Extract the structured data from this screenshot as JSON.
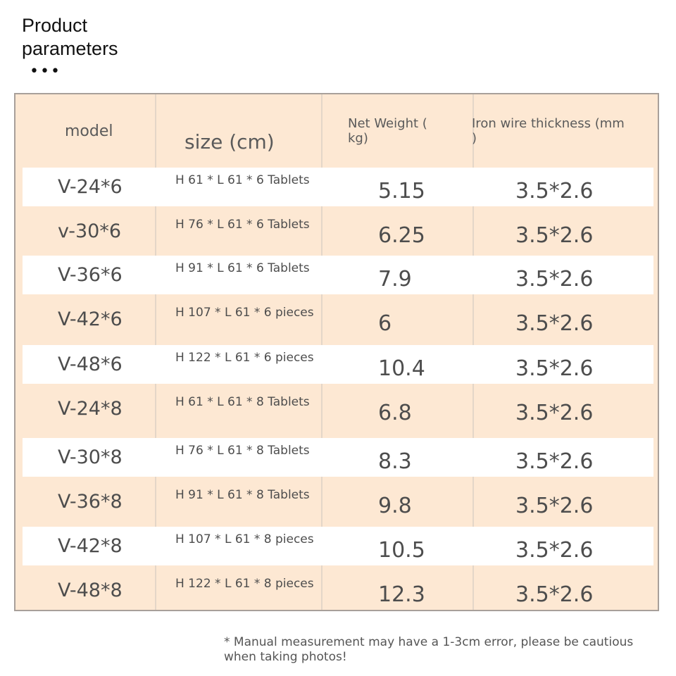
{
  "header": {
    "title_line1": "Product",
    "title_line2": "parameters",
    "dots": "•••"
  },
  "table": {
    "columns": [
      "model",
      "size (cm)",
      "Net Weight (\nkg)",
      "Iron wire thickness (mm\n)"
    ],
    "rows": [
      {
        "model": "V-24*6",
        "size": "H 61 * L 61 * 6 Tablets",
        "weight": "5.15",
        "thickness": "3.5*2.6"
      },
      {
        "model": "v-30*6",
        "size": "H 76 * L 61 * 6 Tablets",
        "weight": "6.25",
        "thickness": "3.5*2.6"
      },
      {
        "model": "V-36*6",
        "size": "H 91 * L 61 * 6 Tablets",
        "weight": "7.9",
        "thickness": "3.5*2.6"
      },
      {
        "model": "V-42*6",
        "size": "H 107 * L 61 * 6 pieces",
        "weight": "6",
        "thickness": "3.5*2.6"
      },
      {
        "model": "V-48*6",
        "size": "H 122 * L 61 * 6 pieces",
        "weight": "10.4",
        "thickness": "3.5*2.6"
      },
      {
        "model": "V-24*8",
        "size": "H 61 * L 61 * 8 Tablets",
        "weight": "6.8",
        "thickness": "3.5*2.6"
      },
      {
        "model": "V-30*8",
        "size": "H 76 * L 61 * 8 Tablets",
        "weight": "8.3",
        "thickness": "3.5*2.6"
      },
      {
        "model": "V-36*8",
        "size": "H 91 * L 61 * 8 Tablets",
        "weight": "9.8",
        "thickness": "3.5*2.6"
      },
      {
        "model": "V-42*8",
        "size": "H 107 * L 61 * 8 pieces",
        "weight": "10.5",
        "thickness": "3.5*2.6"
      },
      {
        "model": "V-48*8",
        "size": "H 122 * L 61 * 8 pieces",
        "weight": "12.3",
        "thickness": "3.5*2.6"
      }
    ]
  },
  "footer": {
    "note": "* Manual measurement may have a 1-3cm error, please be cautious when taking photos!"
  },
  "colors": {
    "table_bg": "#fde8d3",
    "row_white": "#ffffff",
    "border": "#a8a09a"
  }
}
